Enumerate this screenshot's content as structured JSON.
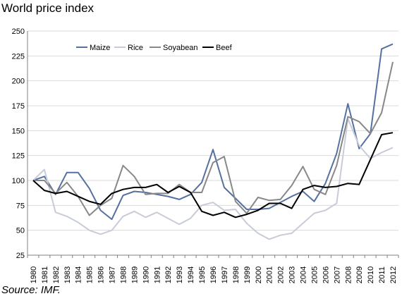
{
  "title": "World price index",
  "source": "Source: IMF.",
  "chart_data": {
    "type": "line",
    "x": [
      "1980",
      "1981",
      "1982",
      "1983",
      "1984",
      "1985",
      "1986",
      "1987",
      "1988",
      "1989",
      "1990",
      "1991",
      "1992",
      "1993",
      "1994",
      "1995",
      "1996",
      "1997",
      "1998",
      "1999",
      "2000",
      "2001",
      "2002",
      "2003",
      "2004",
      "2005",
      "2006",
      "2007",
      "2008",
      "2009",
      "2010",
      "2011",
      "2012"
    ],
    "ylim": [
      25,
      250
    ],
    "yticks": [
      25,
      50,
      75,
      100,
      125,
      150,
      175,
      200,
      225,
      250
    ],
    "grid": true,
    "legend_position": "top-left",
    "series": [
      {
        "name": "Maize",
        "color": "#5670a0",
        "values": [
          100,
          104,
          86,
          108,
          108,
          92,
          70,
          61,
          85,
          89,
          88,
          86,
          84,
          81,
          86,
          98,
          131,
          93,
          82,
          71,
          71,
          72,
          78,
          84,
          89,
          79,
          97,
          127,
          177,
          132,
          147,
          232,
          237
        ]
      },
      {
        "name": "Rice",
        "color": "#c8ccd8",
        "values": [
          100,
          111,
          68,
          64,
          58,
          50,
          46,
          50,
          64,
          69,
          63,
          68,
          62,
          56,
          62,
          75,
          78,
          70,
          71,
          57,
          47,
          41,
          45,
          47,
          57,
          67,
          70,
          77,
          162,
          135,
          122,
          128,
          133
        ]
      },
      {
        "name": "Soyabean",
        "color": "#888888",
        "values": [
          100,
          100,
          87,
          98,
          84,
          65,
          75,
          82,
          115,
          104,
          86,
          87,
          87,
          96,
          88,
          88,
          118,
          124,
          79,
          67,
          83,
          80,
          81,
          95,
          114,
          91,
          86,
          115,
          164,
          159,
          147,
          168,
          219
        ]
      },
      {
        "name": "Beef",
        "color": "#000000",
        "values": [
          100,
          90,
          87,
          89,
          84,
          79,
          76,
          87,
          91,
          93,
          93,
          96,
          88,
          94,
          88,
          69,
          65,
          68,
          63,
          66,
          70,
          77,
          77,
          72,
          91,
          95,
          93,
          94,
          97,
          96,
          121,
          146,
          148
        ]
      }
    ]
  }
}
